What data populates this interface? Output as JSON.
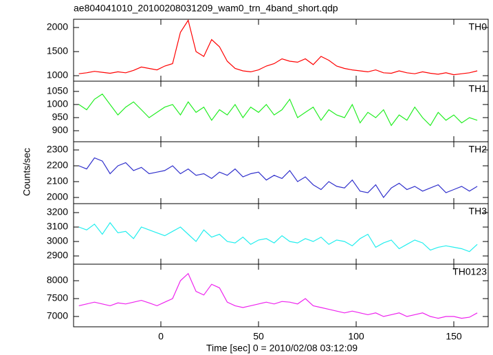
{
  "title": "ae804041010_20100208031209_wam0_trn_4band_short.qdp",
  "y_label": "Counts/sec",
  "x_label": "Time [sec] 0 = 2010/02/08 03:12:09",
  "chart_data": [
    {
      "type": "line",
      "label": "TH0",
      "color": "#ff0000",
      "x": [
        -42,
        -38,
        -34,
        -30,
        -26,
        -22,
        -18,
        -14,
        -10,
        -6,
        -2,
        2,
        6,
        10,
        14,
        18,
        22,
        26,
        30,
        34,
        38,
        42,
        46,
        50,
        54,
        58,
        62,
        66,
        70,
        74,
        78,
        82,
        86,
        90,
        94,
        98,
        102,
        106,
        110,
        114,
        118,
        122,
        126,
        130,
        134,
        138,
        142,
        146,
        150,
        154,
        158,
        162
      ],
      "values": [
        1040,
        1060,
        1090,
        1070,
        1050,
        1080,
        1060,
        1110,
        1180,
        1150,
        1120,
        1200,
        1250,
        1900,
        2150,
        1500,
        1400,
        1750,
        1600,
        1300,
        1150,
        1100,
        1080,
        1120,
        1200,
        1250,
        1350,
        1300,
        1280,
        1350,
        1230,
        1400,
        1320,
        1200,
        1150,
        1120,
        1100,
        1080,
        1120,
        1060,
        1050,
        1100,
        1060,
        1040,
        1080,
        1050,
        1030,
        1060,
        1020,
        1040,
        1060,
        1100
      ],
      "xlim": [
        -44.7,
        167.6
      ],
      "ylim": [
        886,
        2171
      ],
      "xticks": [
        0,
        50,
        100,
        150
      ],
      "yticks": [
        1000,
        1500,
        2000
      ]
    },
    {
      "type": "line",
      "label": "TH1",
      "color": "#22ee22",
      "x": [
        -42,
        -38,
        -34,
        -30,
        -26,
        -22,
        -18,
        -14,
        -10,
        -6,
        -2,
        2,
        6,
        10,
        14,
        18,
        22,
        26,
        30,
        34,
        38,
        42,
        46,
        50,
        54,
        58,
        62,
        66,
        70,
        74,
        78,
        82,
        86,
        90,
        94,
        98,
        102,
        106,
        110,
        114,
        118,
        122,
        126,
        130,
        134,
        138,
        142,
        146,
        150,
        154,
        158,
        162
      ],
      "values": [
        1000,
        980,
        1020,
        1040,
        1000,
        960,
        990,
        1010,
        980,
        950,
        970,
        990,
        1000,
        960,
        1010,
        970,
        990,
        940,
        980,
        960,
        1000,
        950,
        990,
        970,
        1000,
        960,
        980,
        1020,
        950,
        970,
        990,
        940,
        980,
        960,
        950,
        1000,
        930,
        970,
        950,
        980,
        920,
        960,
        940,
        990,
        950,
        920,
        970,
        940,
        960,
        930,
        950,
        940
      ],
      "xlim": [
        -44.7,
        167.6
      ],
      "ylim": [
        858,
        1089
      ],
      "xticks": [
        0,
        50,
        100,
        150
      ],
      "yticks": [
        900,
        950,
        1000,
        1050
      ]
    },
    {
      "type": "line",
      "label": "TH2",
      "color": "#3030cc",
      "x": [
        -42,
        -38,
        -34,
        -30,
        -26,
        -22,
        -18,
        -14,
        -10,
        -6,
        -2,
        2,
        6,
        10,
        14,
        18,
        22,
        26,
        30,
        34,
        38,
        42,
        46,
        50,
        54,
        58,
        62,
        66,
        70,
        74,
        78,
        82,
        86,
        90,
        94,
        98,
        102,
        106,
        110,
        114,
        118,
        122,
        126,
        130,
        134,
        138,
        142,
        146,
        150,
        154,
        158,
        162
      ],
      "values": [
        2200,
        2180,
        2250,
        2230,
        2150,
        2200,
        2220,
        2170,
        2190,
        2150,
        2160,
        2170,
        2200,
        2150,
        2180,
        2140,
        2150,
        2120,
        2160,
        2140,
        2180,
        2130,
        2150,
        2160,
        2110,
        2140,
        2120,
        2170,
        2100,
        2130,
        2080,
        2050,
        2100,
        2070,
        2060,
        2110,
        2040,
        2030,
        2080,
        2000,
        2060,
        2090,
        2050,
        2070,
        2040,
        2060,
        2080,
        2030,
        2050,
        2070,
        2040,
        2070
      ],
      "xlim": [
        -44.7,
        167.6
      ],
      "ylim": [
        1961,
        2352
      ],
      "xticks": [
        0,
        50,
        100,
        150
      ],
      "yticks": [
        2000,
        2100,
        2200,
        2300
      ]
    },
    {
      "type": "line",
      "label": "TH3",
      "color": "#22eeee",
      "x": [
        -42,
        -38,
        -34,
        -30,
        -26,
        -22,
        -18,
        -14,
        -10,
        -6,
        -2,
        2,
        6,
        10,
        14,
        18,
        22,
        26,
        30,
        34,
        38,
        42,
        46,
        50,
        54,
        58,
        62,
        66,
        70,
        74,
        78,
        82,
        86,
        90,
        94,
        98,
        102,
        106,
        110,
        114,
        118,
        122,
        126,
        130,
        134,
        138,
        142,
        146,
        150,
        154,
        158,
        162
      ],
      "values": [
        3100,
        3080,
        3120,
        3050,
        3130,
        3060,
        3070,
        3020,
        3100,
        3080,
        3060,
        3040,
        3070,
        3100,
        3050,
        3000,
        3080,
        3030,
        3050,
        3000,
        2990,
        3030,
        2980,
        3010,
        3020,
        2990,
        3040,
        3000,
        2990,
        3020,
        3000,
        3030,
        2980,
        3010,
        3000,
        2970,
        3020,
        3050,
        2960,
        2990,
        3010,
        2950,
        2980,
        3010,
        2990,
        2940,
        2960,
        2970,
        2960,
        2950,
        2930,
        2980
      ],
      "xlim": [
        -44.7,
        167.6
      ],
      "ylim": [
        2843,
        3262
      ],
      "xticks": [
        0,
        50,
        100,
        150
      ],
      "yticks": [
        2900,
        3000,
        3100,
        3200
      ]
    },
    {
      "type": "line",
      "label": "TH0123",
      "color": "#ee22ee",
      "x": [
        -42,
        -38,
        -34,
        -30,
        -26,
        -22,
        -18,
        -14,
        -10,
        -6,
        -2,
        2,
        6,
        10,
        14,
        18,
        22,
        26,
        30,
        34,
        38,
        42,
        46,
        50,
        54,
        58,
        62,
        66,
        70,
        74,
        78,
        82,
        86,
        90,
        94,
        98,
        102,
        106,
        110,
        114,
        118,
        122,
        126,
        130,
        134,
        138,
        142,
        146,
        150,
        154,
        158,
        162
      ],
      "values": [
        7300,
        7350,
        7400,
        7350,
        7300,
        7380,
        7350,
        7400,
        7450,
        7380,
        7300,
        7400,
        7500,
        8000,
        8200,
        7700,
        7600,
        7900,
        7800,
        7400,
        7300,
        7250,
        7300,
        7350,
        7400,
        7350,
        7420,
        7400,
        7350,
        7500,
        7300,
        7250,
        7200,
        7150,
        7100,
        7150,
        7100,
        7050,
        7100,
        7000,
        7050,
        7100,
        7000,
        7050,
        7100,
        7000,
        6950,
        7000,
        7000,
        6950,
        6980,
        7100
      ],
      "xlim": [
        -44.7,
        167.6
      ],
      "ylim": [
        6712,
        8462
      ],
      "xticks": [
        0,
        50,
        100,
        150
      ],
      "yticks": [
        7000,
        7500,
        8000
      ]
    }
  ]
}
